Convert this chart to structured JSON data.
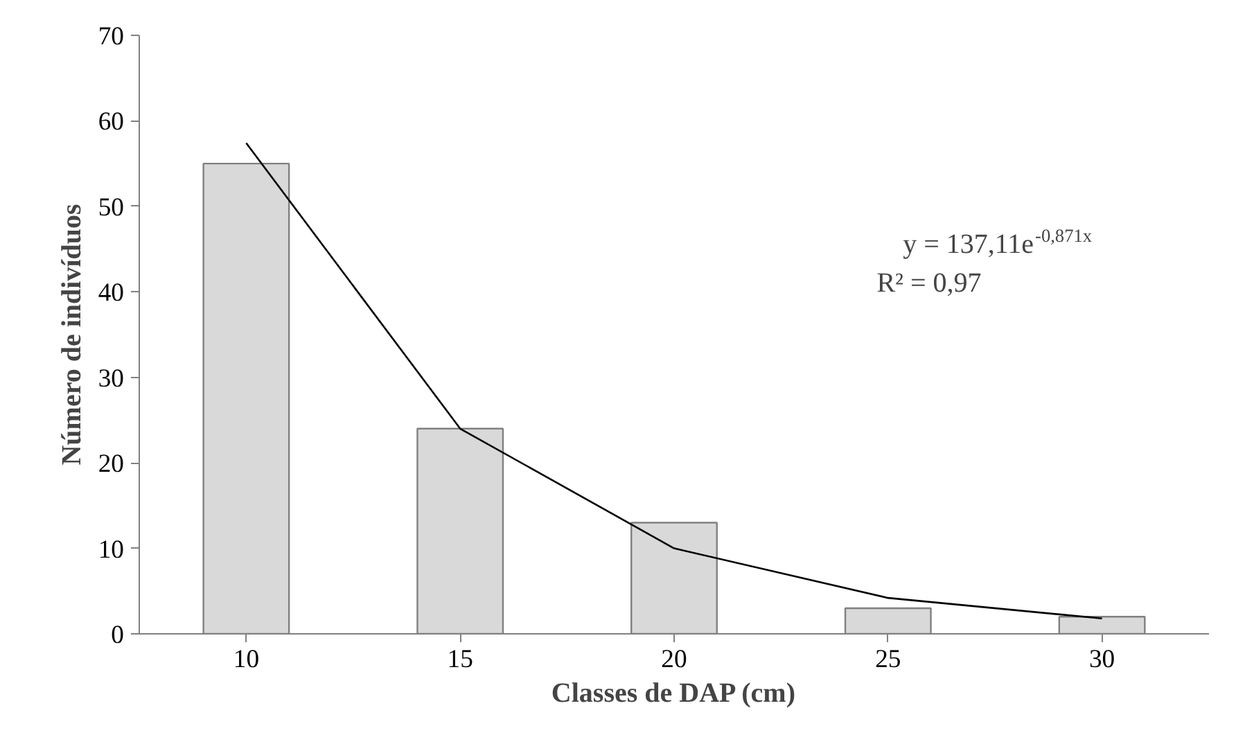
{
  "chart_data": {
    "type": "bar",
    "xlabel": "Classes de DAP (cm)",
    "ylabel": "Número de indivíduos",
    "categories": [
      "10",
      "15",
      "20",
      "25",
      "30"
    ],
    "series": [
      {
        "color": "#d9d9d9",
        "values": [
          55,
          24,
          13,
          3,
          2
        ]
      },
      {
        "type": "line",
        "color": "#000000",
        "x": [
          "10",
          "15",
          "20",
          "25",
          "30"
        ],
        "values": [
          57.4,
          24.0,
          10.0,
          4.2,
          1.8
        ]
      }
    ],
    "ylim": [
      0,
      70
    ],
    "yticks": [
      0,
      10,
      20,
      30,
      40,
      50,
      60,
      70
    ],
    "grid": false,
    "annotations": [
      "y = 137,11e$^{-0,871x}$",
      "R² = 0,97"
    ]
  }
}
